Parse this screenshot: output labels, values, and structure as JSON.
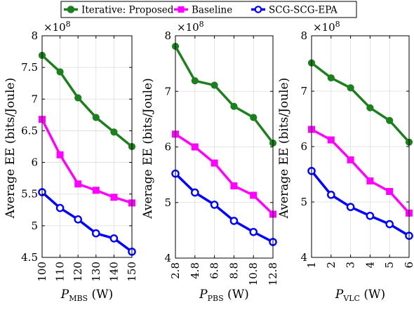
{
  "chart_data": [
    {
      "type": "line",
      "x": [
        100,
        110,
        120,
        130,
        140,
        150
      ],
      "x_tick_labels": [
        "100",
        "110",
        "120",
        "130",
        "140",
        "150"
      ],
      "xlabel_main": "P",
      "xlabel_sub": "MBS",
      "xlabel_unit": "(W)",
      "ylabel": "Average EE (bits/Joule)",
      "y_multiplier": "×10",
      "y_exponent": "8",
      "y_tick_values": [
        4.5,
        5,
        5.5,
        6,
        6.5,
        7,
        7.5,
        8
      ],
      "y_tick_labels": [
        "4.5",
        "5",
        "5.5",
        "6",
        "6.5",
        "7",
        "7.5",
        "8"
      ],
      "ylim": [
        4.5,
        8
      ],
      "xlim": [
        100,
        150
      ],
      "grid": true,
      "series": [
        {
          "name": "Iterative: Proposed",
          "values": [
            7.69,
            7.43,
            7.02,
            6.71,
            6.48,
            6.25
          ]
        },
        {
          "name": "Baseline",
          "values": [
            6.68,
            6.12,
            5.66,
            5.56,
            5.45,
            5.36
          ]
        },
        {
          "name": "SCG-SCG-EPA",
          "values": [
            5.53,
            5.28,
            5.1,
            4.88,
            4.8,
            4.59
          ]
        }
      ]
    },
    {
      "type": "line",
      "x": [
        2.8,
        4.8,
        6.8,
        8.8,
        10.8,
        12.8
      ],
      "x_tick_labels": [
        "2.8",
        "4.8",
        "6.8",
        "8.8",
        "10.8",
        "12.8"
      ],
      "xlabel_main": "P",
      "xlabel_sub": "PBS",
      "xlabel_unit": "(W)",
      "ylabel": "Average EE (bits/Joule)",
      "y_multiplier": "×10",
      "y_exponent": "8",
      "y_tick_values": [
        4,
        5,
        6,
        7,
        8
      ],
      "y_tick_labels": [
        "4",
        "5",
        "6",
        "7",
        "8"
      ],
      "ylim": [
        4,
        8
      ],
      "xlim": [
        2.8,
        12.8
      ],
      "grid": true,
      "series": [
        {
          "name": "Iterative: Proposed",
          "values": [
            7.81,
            7.19,
            7.11,
            6.73,
            6.53,
            6.07
          ]
        },
        {
          "name": "Baseline",
          "values": [
            6.23,
            6.0,
            5.71,
            5.3,
            5.13,
            4.79
          ]
        },
        {
          "name": "SCG-SCG-EPA",
          "values": [
            5.52,
            5.18,
            4.96,
            4.67,
            4.47,
            4.29
          ]
        }
      ]
    },
    {
      "type": "line",
      "x": [
        1,
        2,
        3,
        4,
        5,
        6
      ],
      "x_tick_labels": [
        "1",
        "2",
        "3",
        "4",
        "5",
        "6"
      ],
      "xlabel_main": "P",
      "xlabel_sub": "VLC",
      "xlabel_unit": "(W)",
      "ylabel": "Average EE (bits/Joule)",
      "y_multiplier": "×10",
      "y_exponent": "8",
      "y_tick_values": [
        4,
        5,
        6,
        7,
        8
      ],
      "y_tick_labels": [
        "4",
        "5",
        "6",
        "7",
        "8"
      ],
      "ylim": [
        4,
        8
      ],
      "xlim": [
        1,
        6
      ],
      "grid": true,
      "series": [
        {
          "name": "Iterative: Proposed",
          "values": [
            7.51,
            7.24,
            7.06,
            6.7,
            6.47,
            6.08
          ]
        },
        {
          "name": "Baseline",
          "values": [
            6.31,
            6.12,
            5.76,
            5.38,
            5.19,
            4.8
          ]
        },
        {
          "name": "SCG-SCG-EPA",
          "values": [
            5.56,
            5.13,
            4.91,
            4.75,
            4.6,
            4.39
          ]
        }
      ]
    }
  ],
  "legend": {
    "position": "top-center",
    "entries": [
      {
        "label": "Iterative: Proposed",
        "color": "#1e7f1e",
        "marker": "circle"
      },
      {
        "label": "Baseline",
        "color": "#ff00ff",
        "marker": "square"
      },
      {
        "label": "SCG-SCG-EPA",
        "color": "#0000ff",
        "marker": "circle"
      }
    ]
  },
  "series_colors": [
    "#1e7f1e",
    "#ff00ff",
    "#0000ff"
  ]
}
